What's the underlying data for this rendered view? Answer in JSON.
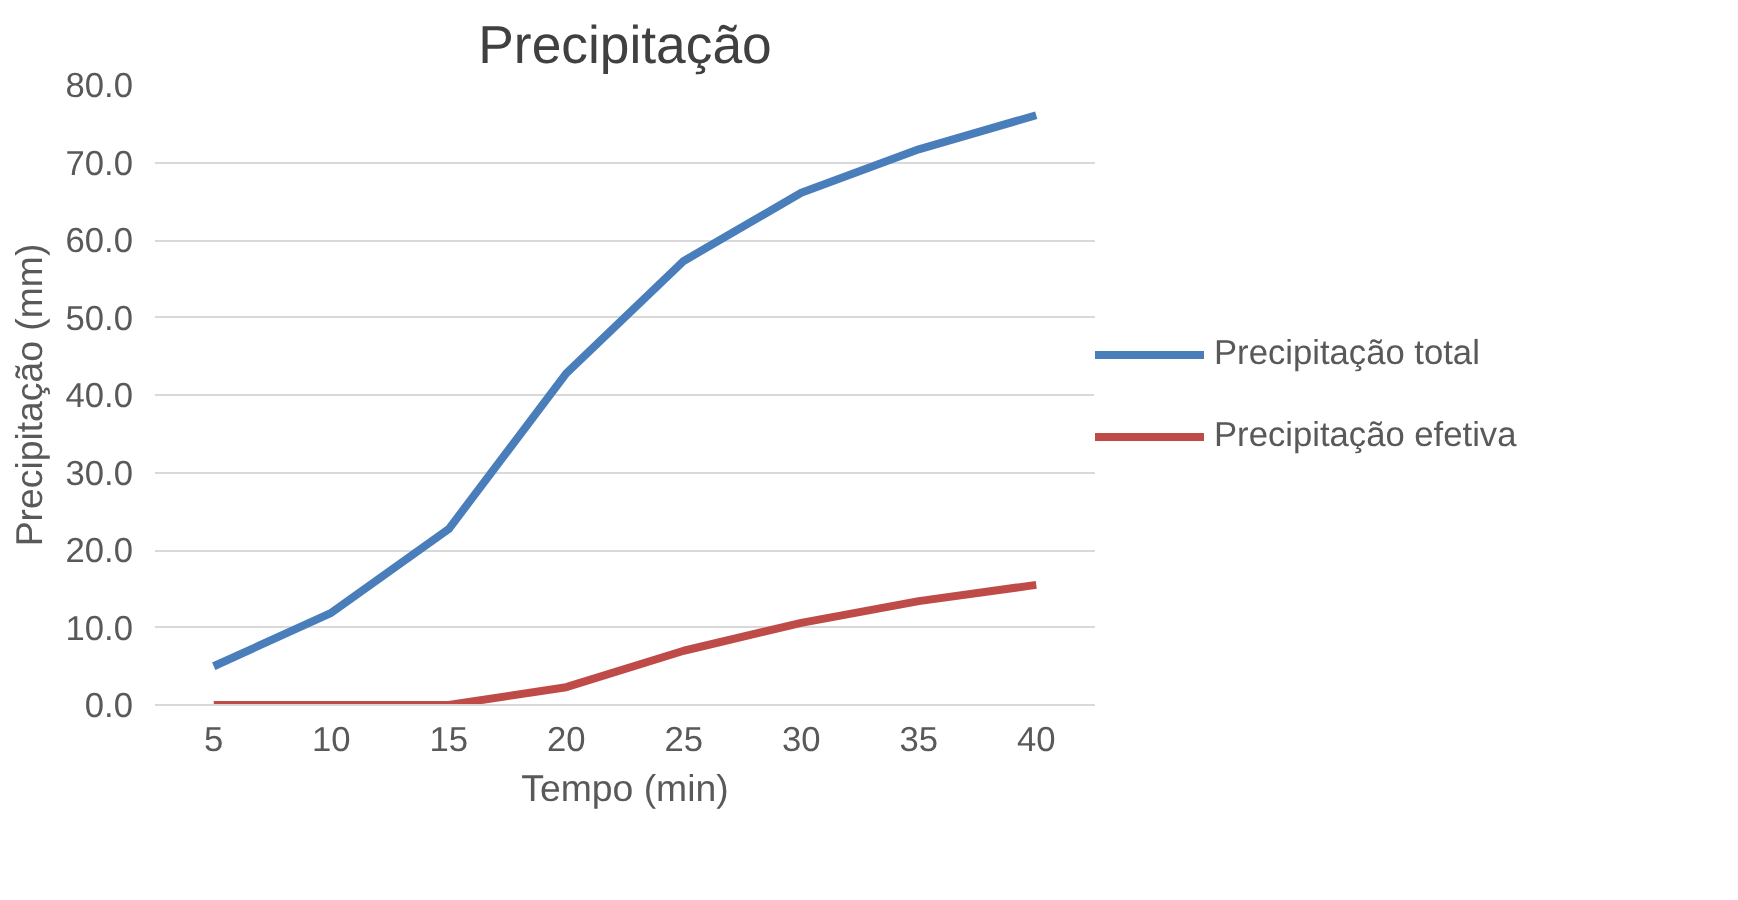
{
  "chart_data": {
    "type": "line",
    "title": "Precipitação",
    "xlabel": "Tempo (min)",
    "ylabel": "Precipitação (mm)",
    "categories": [
      "5",
      "10",
      "15",
      "20",
      "25",
      "30",
      "35",
      "40"
    ],
    "series": [
      {
        "name": "Precipitação total",
        "color": "#4a7ebb",
        "values": [
          5.0,
          11.9,
          22.7,
          42.8,
          57.3,
          66.1,
          71.7,
          76.1
        ]
      },
      {
        "name": "Precipitação efetiva",
        "color": "#be4b48",
        "values": [
          0.0,
          0.0,
          0.0,
          2.3,
          7.0,
          10.6,
          13.4,
          15.5
        ]
      }
    ],
    "ylim": [
      0,
      80
    ],
    "yticks": [
      {
        "value": 0,
        "label": "0.0"
      },
      {
        "value": 10,
        "label": "10.0"
      },
      {
        "value": 20,
        "label": "20.0"
      },
      {
        "value": 30,
        "label": "30.0"
      },
      {
        "value": 40,
        "label": "40.0"
      },
      {
        "value": 50,
        "label": "50.0"
      },
      {
        "value": 60,
        "label": "60.0"
      },
      {
        "value": 70,
        "label": "70.0"
      },
      {
        "value": 80,
        "label": "80.0"
      }
    ],
    "grid": "y",
    "legend": "right",
    "marker": "none",
    "line_style": "solid"
  }
}
